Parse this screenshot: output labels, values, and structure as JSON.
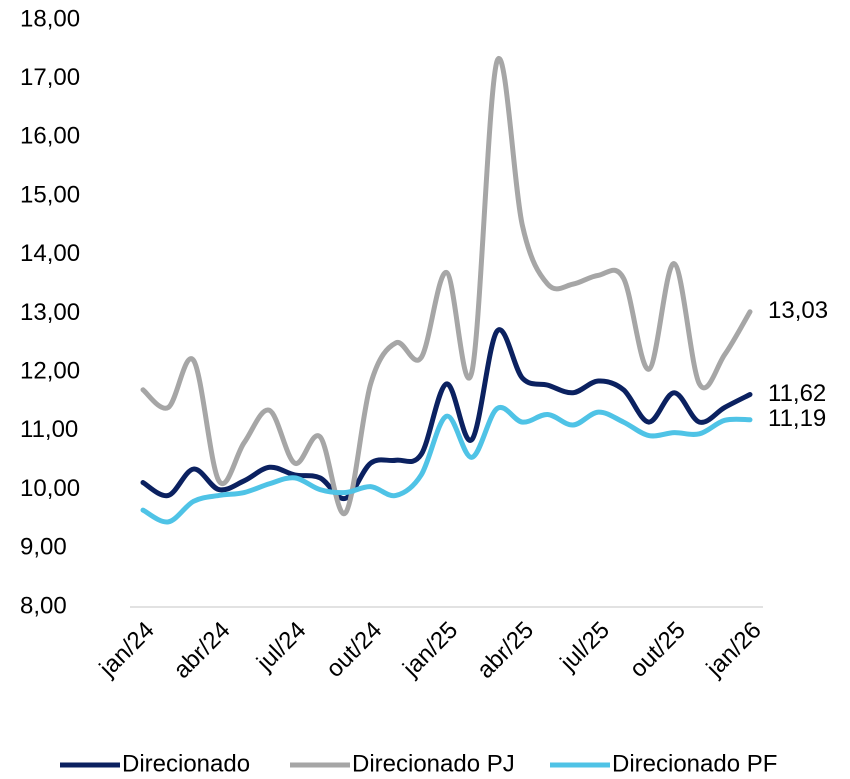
{
  "chart_data": {
    "type": "line",
    "categories": [
      "jan/24",
      null,
      null,
      "abr/24",
      null,
      null,
      "jul/24",
      null,
      null,
      "out/24",
      null,
      null,
      "jan/25",
      null,
      null,
      "abr/25",
      null,
      null,
      "jul/25",
      null,
      null,
      "out/25",
      null,
      null,
      "jan/26"
    ],
    "series": [
      {
        "name": "Direcionado",
        "color": "#0b2160",
        "values": [
          10.12,
          9.9,
          10.35,
          10.0,
          10.15,
          10.38,
          10.25,
          10.2,
          9.85,
          10.45,
          10.5,
          10.6,
          11.8,
          10.85,
          12.7,
          11.9,
          11.78,
          11.65,
          11.85,
          11.7,
          11.15,
          11.65,
          11.15,
          11.4,
          11.62
        ],
        "value_labels": [
          null,
          null,
          null,
          null,
          null,
          null,
          null,
          null,
          null,
          null,
          null,
          null,
          null,
          null,
          null,
          null,
          null,
          null,
          null,
          null,
          null,
          null,
          null,
          null,
          "11,62"
        ]
      },
      {
        "name": "Direcionado PJ",
        "color": "#a6a6a6",
        "values": [
          11.7,
          11.4,
          12.2,
          10.15,
          10.8,
          11.35,
          10.45,
          10.9,
          9.6,
          11.8,
          12.5,
          12.25,
          13.7,
          12.0,
          17.3,
          14.5,
          13.5,
          13.5,
          13.65,
          13.6,
          12.05,
          13.85,
          11.8,
          12.3,
          13.03
        ],
        "value_labels": [
          null,
          null,
          null,
          null,
          null,
          null,
          null,
          null,
          null,
          null,
          null,
          null,
          null,
          null,
          null,
          null,
          null,
          null,
          null,
          null,
          null,
          null,
          null,
          null,
          "13,03"
        ]
      },
      {
        "name": "Direcionado PF",
        "color": "#4fc3e6",
        "values": [
          9.65,
          9.45,
          9.8,
          9.9,
          9.95,
          10.1,
          10.2,
          10.0,
          9.95,
          10.05,
          9.9,
          10.25,
          11.25,
          10.55,
          11.38,
          11.15,
          11.28,
          11.1,
          11.32,
          11.15,
          10.92,
          10.97,
          10.95,
          11.18,
          11.19
        ],
        "value_labels": [
          null,
          null,
          null,
          null,
          null,
          null,
          null,
          null,
          null,
          null,
          null,
          null,
          null,
          null,
          null,
          null,
          null,
          null,
          null,
          null,
          null,
          null,
          null,
          null,
          "11,19"
        ]
      }
    ],
    "ylim": [
      8,
      18
    ],
    "yticks": [
      {
        "value": 8,
        "label": "8,00"
      },
      {
        "value": 9,
        "label": "9,00"
      },
      {
        "value": 10,
        "label": "10,00"
      },
      {
        "value": 11,
        "label": "11,00"
      },
      {
        "value": 12,
        "label": "12,00"
      },
      {
        "value": 13,
        "label": "13,00"
      },
      {
        "value": 14,
        "label": "14,00"
      },
      {
        "value": 15,
        "label": "15,00"
      },
      {
        "value": 16,
        "label": "16,00"
      },
      {
        "value": 17,
        "label": "17,00"
      },
      {
        "value": 18,
        "label": "18,00"
      }
    ],
    "grid": false,
    "legend": "bottom"
  }
}
